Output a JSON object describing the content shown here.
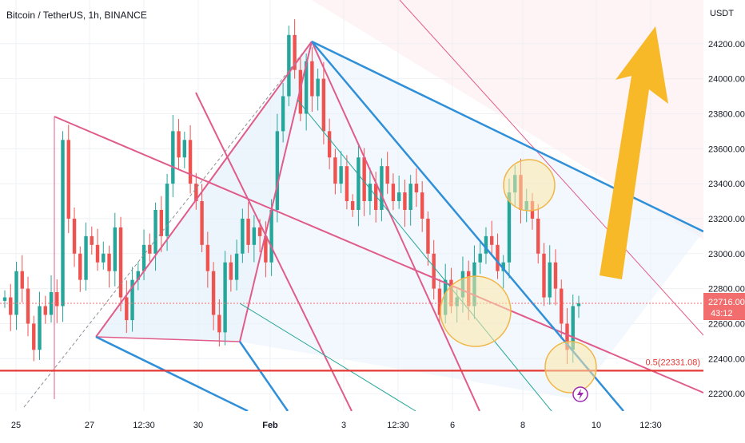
{
  "chart_data": {
    "type": "candlestick",
    "title": "Bitcoin / TetherUS, 1h, BINANCE",
    "y_unit": "USDT",
    "ylim": [
      22100,
      24450
    ],
    "y_ticks": [
      22200,
      22400,
      22600,
      22800,
      23000,
      23200,
      23400,
      23600,
      23800,
      24000,
      24200
    ],
    "y_tick_labels": [
      "22200.00",
      "22400.00",
      "22600.00",
      "22800.00",
      "23000.00",
      "23200.00",
      "23400.00",
      "23600.00",
      "23800.00",
      "24000.00",
      "24200.00"
    ],
    "x_ticks": [
      {
        "label": "25",
        "bold": false
      },
      {
        "label": "27",
        "bold": false
      },
      {
        "label": "12:30",
        "bold": false
      },
      {
        "label": "30",
        "bold": false
      },
      {
        "label": "Feb",
        "bold": true
      },
      {
        "label": "3",
        "bold": false
      },
      {
        "label": "12:30",
        "bold": false
      },
      {
        "label": "6",
        "bold": false
      },
      {
        "label": "8",
        "bold": false
      },
      {
        "label": "10",
        "bold": false
      },
      {
        "label": "12:30",
        "bold": false
      }
    ],
    "price_path": [
      22750,
      22650,
      22900,
      22800,
      22600,
      22450,
      22700,
      22650,
      22780,
      22700,
      23650,
      23200,
      23000,
      22850,
      23100,
      23050,
      22950,
      23000,
      22900,
      23150,
      22750,
      22620,
      22850,
      22900,
      23050,
      23000,
      23250,
      23100,
      23400,
      23700,
      23550,
      23650,
      23400,
      23300,
      23050,
      22900,
      22650,
      22550,
      22950,
      22850,
      23000,
      23200,
      23050,
      23150,
      23100,
      22950,
      23250,
      23700,
      23900,
      24250,
      24050,
      23800,
      24100,
      23900,
      24000,
      23700,
      23550,
      23400,
      23500,
      23300,
      23250,
      23550,
      23300,
      23400,
      23250,
      23500,
      23400,
      23300,
      23350,
      23250,
      23400,
      23350,
      23200,
      23000,
      22800,
      22650,
      22850,
      22700,
      22750,
      22900,
      22700,
      22950,
      23000,
      23100,
      23050,
      22900,
      22950,
      23350,
      23450,
      23250,
      23300,
      23200,
      23000,
      22750,
      22950,
      22800,
      22600,
      22450,
      22700,
      22716
    ],
    "current_price": {
      "value": 22716,
      "label": "22716.00",
      "countdown": "43:12"
    },
    "support_level": {
      "value": 22331.08,
      "label": "0.5(22331.08)"
    },
    "annotations": [
      "ascending pitchfork lines (pink)",
      "descending trend channel (blue)",
      "highlight circles at three touch points",
      "large yellow arrow pointing up-right"
    ],
    "colors": {
      "up": "#26a69a",
      "down": "#ef5350",
      "pink_line": "#e05c8a",
      "blue_line": "#2f8fd8",
      "support": "#e53935",
      "arrow": "#f7b928",
      "circle_fill": "#fbe7a8",
      "circle_stroke": "#f0b64a",
      "price_tag": "#f26d6d",
      "grid": "#eef0f4"
    },
    "grid": true,
    "legend": "none"
  }
}
